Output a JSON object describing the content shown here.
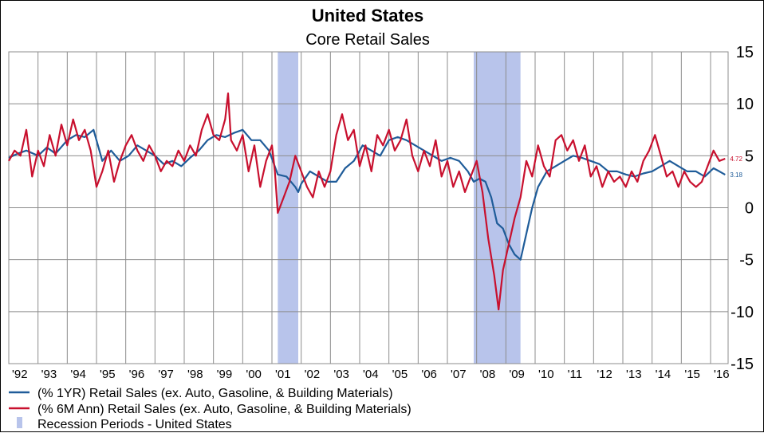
{
  "chart_data": {
    "type": "line",
    "title": "United States",
    "subtitle": "Core Retail Sales",
    "x_range": [
      1992.0,
      2016.6
    ],
    "ylim": [
      -15,
      15
    ],
    "y_ticks": [
      15,
      10,
      5,
      0,
      -5,
      -10,
      -15
    ],
    "y_tick_labels": [
      "15",
      "10",
      "5",
      "0",
      "-5",
      "-10",
      "-15"
    ],
    "x_tick_labels": [
      "'92",
      "'93",
      "'94",
      "'95",
      "'96",
      "'97",
      "'98",
      "'99",
      "'00",
      "'01",
      "'02",
      "'03",
      "'04",
      "'05",
      "'06",
      "'07",
      "'08",
      "'09",
      "'10",
      "'11",
      "'12",
      "'13",
      "'14",
      "'15",
      "'16"
    ],
    "x_tick_years": [
      1992,
      1993,
      1994,
      1995,
      1996,
      1997,
      1998,
      1999,
      2000,
      2001,
      2002,
      2003,
      2004,
      2005,
      2006,
      2007,
      2008,
      2009,
      2010,
      2011,
      2012,
      2013,
      2014,
      2015,
      2016
    ],
    "grid": true,
    "legend_position": "bottom-left",
    "recessions": [
      {
        "start": 2001.2,
        "end": 2001.9
      },
      {
        "start": 2007.9,
        "end": 2009.5
      }
    ],
    "series": [
      {
        "name": "(% 1YR) Retail Sales (ex. Auto, Gasoline, &  Building Materials)",
        "color": "#1f5c99",
        "end_label": "3.18",
        "points": [
          [
            1992.0,
            4.8
          ],
          [
            1992.3,
            5.2
          ],
          [
            1992.6,
            5.5
          ],
          [
            1993.0,
            5.0
          ],
          [
            1993.3,
            5.8
          ],
          [
            1993.6,
            5.2
          ],
          [
            1994.0,
            6.5
          ],
          [
            1994.3,
            7.0
          ],
          [
            1994.6,
            6.8
          ],
          [
            1994.9,
            7.5
          ],
          [
            1995.2,
            4.5
          ],
          [
            1995.5,
            5.5
          ],
          [
            1995.8,
            4.5
          ],
          [
            1996.1,
            5.0
          ],
          [
            1996.4,
            6.0
          ],
          [
            1996.7,
            5.5
          ],
          [
            1997.0,
            5.0
          ],
          [
            1997.3,
            4.2
          ],
          [
            1997.6,
            4.5
          ],
          [
            1997.9,
            4.0
          ],
          [
            1998.2,
            4.8
          ],
          [
            1998.5,
            5.5
          ],
          [
            1998.8,
            6.5
          ],
          [
            1999.1,
            7.0
          ],
          [
            1999.4,
            6.8
          ],
          [
            1999.7,
            7.2
          ],
          [
            2000.0,
            7.5
          ],
          [
            2000.3,
            6.5
          ],
          [
            2000.6,
            6.5
          ],
          [
            2000.9,
            5.5
          ],
          [
            2001.2,
            3.2
          ],
          [
            2001.5,
            3.0
          ],
          [
            2001.8,
            2.0
          ],
          [
            2001.9,
            1.5
          ],
          [
            2002.0,
            2.3
          ],
          [
            2002.3,
            3.5
          ],
          [
            2002.6,
            3.0
          ],
          [
            2002.9,
            2.5
          ],
          [
            2003.2,
            2.5
          ],
          [
            2003.5,
            3.8
          ],
          [
            2003.8,
            4.5
          ],
          [
            2004.1,
            6.0
          ],
          [
            2004.4,
            5.5
          ],
          [
            2004.7,
            5.0
          ],
          [
            2005.0,
            6.5
          ],
          [
            2005.3,
            6.8
          ],
          [
            2005.6,
            6.5
          ],
          [
            2005.9,
            6.0
          ],
          [
            2006.2,
            5.5
          ],
          [
            2006.5,
            5.0
          ],
          [
            2006.8,
            4.5
          ],
          [
            2007.1,
            4.8
          ],
          [
            2007.4,
            4.5
          ],
          [
            2007.7,
            3.5
          ],
          [
            2007.9,
            2.5
          ],
          [
            2008.1,
            2.8
          ],
          [
            2008.3,
            2.5
          ],
          [
            2008.5,
            1.0
          ],
          [
            2008.7,
            -1.5
          ],
          [
            2008.9,
            -2.0
          ],
          [
            2009.1,
            -3.5
          ],
          [
            2009.3,
            -4.5
          ],
          [
            2009.5,
            -5.0
          ],
          [
            2009.7,
            -2.5
          ],
          [
            2009.9,
            0.0
          ],
          [
            2010.1,
            2.0
          ],
          [
            2010.4,
            3.5
          ],
          [
            2010.7,
            4.0
          ],
          [
            2011.0,
            4.5
          ],
          [
            2011.3,
            5.0
          ],
          [
            2011.6,
            4.8
          ],
          [
            2011.9,
            4.5
          ],
          [
            2012.2,
            4.2
          ],
          [
            2012.5,
            3.5
          ],
          [
            2012.8,
            3.5
          ],
          [
            2013.1,
            3.2
          ],
          [
            2013.4,
            3.0
          ],
          [
            2013.7,
            3.3
          ],
          [
            2014.0,
            3.5
          ],
          [
            2014.3,
            4.0
          ],
          [
            2014.6,
            4.5
          ],
          [
            2014.9,
            4.0
          ],
          [
            2015.2,
            3.5
          ],
          [
            2015.5,
            3.5
          ],
          [
            2015.8,
            3.0
          ],
          [
            2016.1,
            3.8
          ],
          [
            2016.3,
            3.5
          ],
          [
            2016.5,
            3.18
          ]
        ]
      },
      {
        "name": "(% 6M Ann) Retail Sales (ex. Auto, Gasoline, &  Building Materials)",
        "color": "#c8102e",
        "end_label": "4.72",
        "points": [
          [
            1992.0,
            4.5
          ],
          [
            1992.2,
            5.5
          ],
          [
            1992.4,
            5.0
          ],
          [
            1992.6,
            7.5
          ],
          [
            1992.8,
            3.0
          ],
          [
            1993.0,
            5.5
          ],
          [
            1993.2,
            4.0
          ],
          [
            1993.4,
            7.0
          ],
          [
            1993.6,
            5.0
          ],
          [
            1993.8,
            8.0
          ],
          [
            1994.0,
            6.0
          ],
          [
            1994.2,
            8.5
          ],
          [
            1994.4,
            6.5
          ],
          [
            1994.6,
            7.5
          ],
          [
            1994.8,
            5.5
          ],
          [
            1995.0,
            2.0
          ],
          [
            1995.2,
            3.5
          ],
          [
            1995.4,
            5.5
          ],
          [
            1995.6,
            2.5
          ],
          [
            1995.8,
            4.5
          ],
          [
            1996.0,
            6.0
          ],
          [
            1996.2,
            7.0
          ],
          [
            1996.4,
            5.5
          ],
          [
            1996.6,
            4.5
          ],
          [
            1996.8,
            6.0
          ],
          [
            1997.0,
            5.0
          ],
          [
            1997.2,
            3.5
          ],
          [
            1997.4,
            4.5
          ],
          [
            1997.6,
            4.0
          ],
          [
            1997.8,
            5.5
          ],
          [
            1998.0,
            4.5
          ],
          [
            1998.2,
            6.0
          ],
          [
            1998.4,
            5.0
          ],
          [
            1998.6,
            7.5
          ],
          [
            1998.8,
            9.0
          ],
          [
            1999.0,
            7.0
          ],
          [
            1999.2,
            6.5
          ],
          [
            1999.4,
            8.5
          ],
          [
            1999.5,
            11.0
          ],
          [
            1999.6,
            6.5
          ],
          [
            1999.8,
            5.5
          ],
          [
            2000.0,
            7.0
          ],
          [
            2000.2,
            3.5
          ],
          [
            2000.4,
            6.0
          ],
          [
            2000.6,
            2.0
          ],
          [
            2000.8,
            4.5
          ],
          [
            2001.0,
            6.0
          ],
          [
            2001.1,
            3.5
          ],
          [
            2001.2,
            -0.5
          ],
          [
            2001.4,
            1.0
          ],
          [
            2001.6,
            2.5
          ],
          [
            2001.8,
            5.0
          ],
          [
            2002.0,
            3.5
          ],
          [
            2002.2,
            2.0
          ],
          [
            2002.4,
            1.0
          ],
          [
            2002.6,
            3.5
          ],
          [
            2002.8,
            2.0
          ],
          [
            2003.0,
            3.5
          ],
          [
            2003.2,
            7.0
          ],
          [
            2003.4,
            9.0
          ],
          [
            2003.6,
            6.5
          ],
          [
            2003.8,
            7.5
          ],
          [
            2004.0,
            4.0
          ],
          [
            2004.2,
            6.0
          ],
          [
            2004.4,
            3.5
          ],
          [
            2004.6,
            7.0
          ],
          [
            2004.8,
            6.0
          ],
          [
            2005.0,
            7.5
          ],
          [
            2005.2,
            5.5
          ],
          [
            2005.4,
            6.5
          ],
          [
            2005.6,
            8.5
          ],
          [
            2005.8,
            5.0
          ],
          [
            2006.0,
            3.5
          ],
          [
            2006.2,
            5.5
          ],
          [
            2006.4,
            4.0
          ],
          [
            2006.6,
            6.5
          ],
          [
            2006.8,
            3.0
          ],
          [
            2007.0,
            4.5
          ],
          [
            2007.2,
            2.0
          ],
          [
            2007.4,
            3.5
          ],
          [
            2007.6,
            1.5
          ],
          [
            2007.8,
            3.0
          ],
          [
            2008.0,
            4.5
          ],
          [
            2008.2,
            1.5
          ],
          [
            2008.4,
            -3.0
          ],
          [
            2008.6,
            -6.5
          ],
          [
            2008.75,
            -9.8
          ],
          [
            2008.9,
            -6.0
          ],
          [
            2009.1,
            -3.5
          ],
          [
            2009.3,
            -1.0
          ],
          [
            2009.5,
            1.0
          ],
          [
            2009.7,
            4.5
          ],
          [
            2009.9,
            3.0
          ],
          [
            2010.1,
            6.0
          ],
          [
            2010.3,
            4.0
          ],
          [
            2010.5,
            3.0
          ],
          [
            2010.7,
            6.5
          ],
          [
            2010.9,
            7.0
          ],
          [
            2011.1,
            5.5
          ],
          [
            2011.3,
            6.5
          ],
          [
            2011.5,
            4.5
          ],
          [
            2011.7,
            6.0
          ],
          [
            2011.9,
            3.0
          ],
          [
            2012.1,
            4.0
          ],
          [
            2012.3,
            2.0
          ],
          [
            2012.5,
            3.5
          ],
          [
            2012.7,
            2.5
          ],
          [
            2012.9,
            3.0
          ],
          [
            2013.1,
            2.0
          ],
          [
            2013.3,
            3.5
          ],
          [
            2013.5,
            2.5
          ],
          [
            2013.7,
            4.5
          ],
          [
            2013.9,
            5.5
          ],
          [
            2014.1,
            7.0
          ],
          [
            2014.3,
            5.0
          ],
          [
            2014.5,
            3.0
          ],
          [
            2014.7,
            3.5
          ],
          [
            2014.9,
            2.0
          ],
          [
            2015.1,
            3.5
          ],
          [
            2015.3,
            2.5
          ],
          [
            2015.5,
            2.0
          ],
          [
            2015.7,
            2.5
          ],
          [
            2015.9,
            4.0
          ],
          [
            2016.1,
            5.5
          ],
          [
            2016.3,
            4.5
          ],
          [
            2016.5,
            4.72
          ]
        ]
      }
    ]
  },
  "legend": {
    "items": [
      {
        "label": "(% 1YR) Retail Sales (ex. Auto, Gasoline, &  Building Materials)",
        "color": "#1f5c99"
      },
      {
        "label": "(% 6M Ann) Retail Sales (ex. Auto, Gasoline, &  Building Materials)",
        "color": "#c8102e"
      },
      {
        "label": "Recession Periods - United States",
        "color": "#b8c4eb"
      }
    ]
  }
}
